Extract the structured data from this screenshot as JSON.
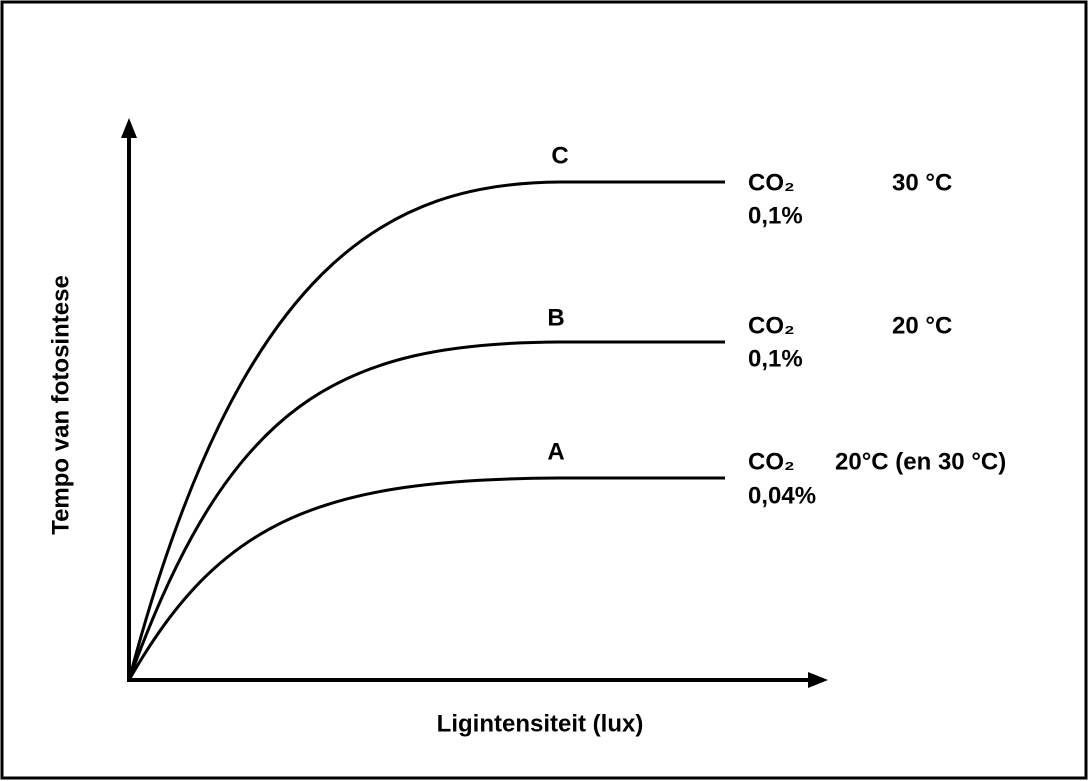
{
  "y_axis": {
    "label": "Tempo van fotosintese"
  },
  "x_axis": {
    "label": "Ligintensiteit (lux)"
  },
  "curves": [
    {
      "label": "C",
      "gas": "CO₂",
      "temperature": "30 °C",
      "concentration": "0,1%"
    },
    {
      "label": "B",
      "gas": "CO₂",
      "temperature": "20 °C",
      "concentration": "0,1%"
    },
    {
      "label": "A",
      "gas": "CO₂",
      "temperature": "20°C (en 30 °C)",
      "concentration": "0,04%"
    }
  ]
}
